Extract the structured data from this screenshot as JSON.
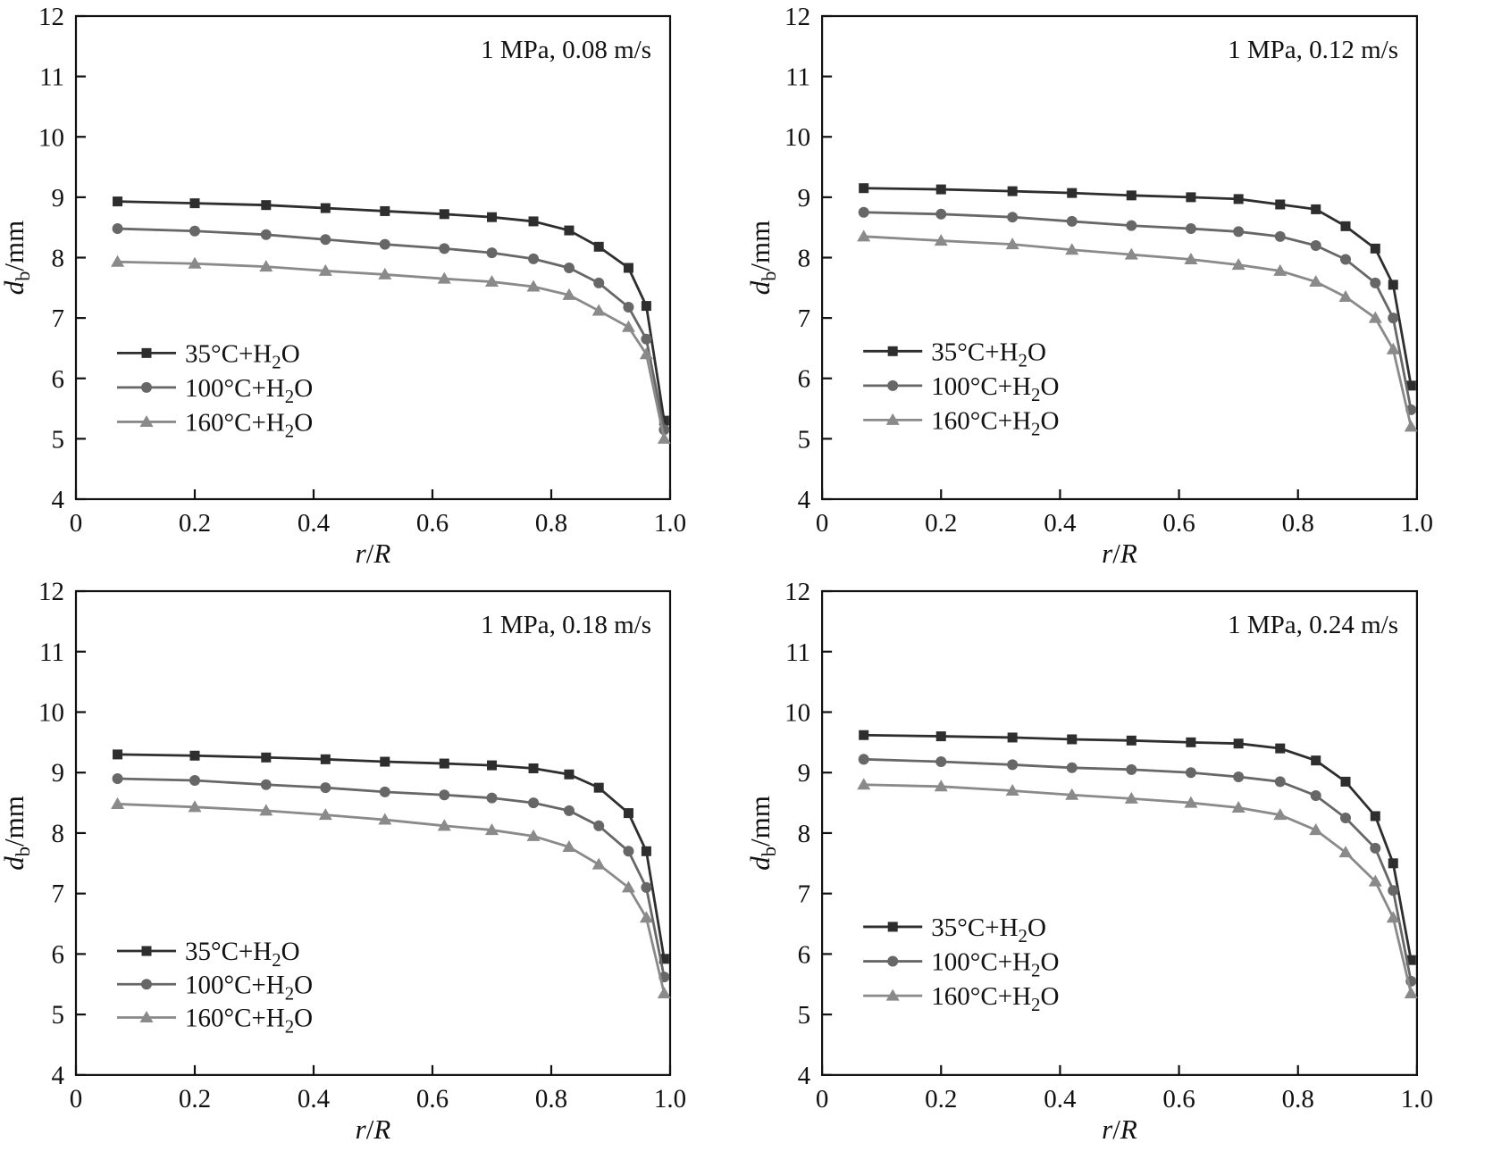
{
  "figure": {
    "background": "#ffffff",
    "xlabel": "r/R",
    "ylabel_var": "d",
    "ylabel_sub": "b",
    "ylabel_unit": "/mm",
    "xlim": [
      0,
      1.0
    ],
    "ylim": [
      4,
      12
    ],
    "xticks": [
      0,
      0.2,
      0.4,
      0.6,
      0.8,
      1.0
    ],
    "yticks": [
      4,
      5,
      6,
      7,
      8,
      9,
      10,
      11,
      12
    ],
    "grid": false,
    "legend_position": "lower-left-inside",
    "series_colors": [
      "#2e2e2e",
      "#676767",
      "#8a8a8a"
    ],
    "series_markers": [
      "square",
      "circle",
      "triangle"
    ],
    "axis_color": "#111111"
  },
  "chart_data": [
    {
      "type": "line",
      "annotation": "1 MPa, 0.08 m/s",
      "xlabel": "r/R",
      "ylabel": "db/mm",
      "xlim": [
        0,
        1.0
      ],
      "ylim": [
        4,
        12
      ],
      "x": [
        0.07,
        0.2,
        0.32,
        0.42,
        0.52,
        0.62,
        0.7,
        0.77,
        0.83,
        0.88,
        0.93,
        0.96,
        0.99
      ],
      "series": [
        {
          "name": "35°C+H₂O",
          "values": [
            8.93,
            8.9,
            8.87,
            8.82,
            8.77,
            8.72,
            8.67,
            8.6,
            8.45,
            8.18,
            7.83,
            7.2,
            5.3
          ]
        },
        {
          "name": "100°C+H₂O",
          "values": [
            8.48,
            8.44,
            8.38,
            8.3,
            8.22,
            8.15,
            8.08,
            7.98,
            7.83,
            7.58,
            7.18,
            6.65,
            5.15
          ]
        },
        {
          "name": "160°C+H₂O",
          "values": [
            7.93,
            7.9,
            7.85,
            7.78,
            7.72,
            7.65,
            7.6,
            7.52,
            7.38,
            7.12,
            6.85,
            6.4,
            5.0
          ]
        }
      ],
      "legend_y": [
        6.42,
        5.85,
        5.28
      ]
    },
    {
      "type": "line",
      "annotation": "1 MPa, 0.12 m/s",
      "xlabel": "r/R",
      "ylabel": "db/mm",
      "xlim": [
        0,
        1.0
      ],
      "ylim": [
        4,
        12
      ],
      "x": [
        0.07,
        0.2,
        0.32,
        0.42,
        0.52,
        0.62,
        0.7,
        0.77,
        0.83,
        0.88,
        0.93,
        0.96,
        0.99
      ],
      "series": [
        {
          "name": "35°C+H₂O",
          "values": [
            9.15,
            9.13,
            9.1,
            9.07,
            9.03,
            9.0,
            8.97,
            8.88,
            8.8,
            8.52,
            8.15,
            7.55,
            5.88
          ]
        },
        {
          "name": "100°C+H₂O",
          "values": [
            8.75,
            8.72,
            8.67,
            8.6,
            8.53,
            8.48,
            8.43,
            8.35,
            8.2,
            7.97,
            7.58,
            7.0,
            5.48
          ]
        },
        {
          "name": "160°C+H₂O",
          "values": [
            8.35,
            8.28,
            8.22,
            8.13,
            8.05,
            7.97,
            7.88,
            7.78,
            7.6,
            7.35,
            7.0,
            6.48,
            5.2
          ]
        }
      ],
      "legend_y": [
        6.45,
        5.88,
        5.31
      ]
    },
    {
      "type": "line",
      "annotation": "1 MPa, 0.18 m/s",
      "xlabel": "r/R",
      "ylabel": "db/mm",
      "xlim": [
        0,
        1.0
      ],
      "ylim": [
        4,
        12
      ],
      "x": [
        0.07,
        0.2,
        0.32,
        0.42,
        0.52,
        0.62,
        0.7,
        0.77,
        0.83,
        0.88,
        0.93,
        0.96,
        0.99
      ],
      "series": [
        {
          "name": "35°C+H₂O",
          "values": [
            9.3,
            9.28,
            9.25,
            9.22,
            9.18,
            9.15,
            9.12,
            9.07,
            8.97,
            8.75,
            8.33,
            7.7,
            5.92
          ]
        },
        {
          "name": "100°C+H₂O",
          "values": [
            8.9,
            8.87,
            8.8,
            8.75,
            8.68,
            8.63,
            8.58,
            8.5,
            8.37,
            8.12,
            7.7,
            7.1,
            5.62
          ]
        },
        {
          "name": "160°C+H₂O",
          "values": [
            8.48,
            8.43,
            8.37,
            8.3,
            8.22,
            8.12,
            8.05,
            7.95,
            7.77,
            7.48,
            7.1,
            6.6,
            5.35
          ]
        }
      ],
      "legend_y": [
        6.05,
        5.5,
        4.95
      ]
    },
    {
      "type": "line",
      "annotation": "1 MPa, 0.24 m/s",
      "xlabel": "r/R",
      "ylabel": "db/mm",
      "xlim": [
        0,
        1.0
      ],
      "ylim": [
        4,
        12
      ],
      "x": [
        0.07,
        0.2,
        0.32,
        0.42,
        0.52,
        0.62,
        0.7,
        0.77,
        0.83,
        0.88,
        0.93,
        0.96,
        0.99
      ],
      "series": [
        {
          "name": "35°C+H₂O",
          "values": [
            9.62,
            9.6,
            9.58,
            9.55,
            9.53,
            9.5,
            9.48,
            9.4,
            9.2,
            8.85,
            8.28,
            7.5,
            5.9
          ]
        },
        {
          "name": "100°C+H₂O",
          "values": [
            9.22,
            9.18,
            9.13,
            9.08,
            9.05,
            9.0,
            8.93,
            8.85,
            8.62,
            8.25,
            7.75,
            7.05,
            5.55
          ]
        },
        {
          "name": "160°C+H₂O",
          "values": [
            8.8,
            8.77,
            8.7,
            8.63,
            8.57,
            8.5,
            8.42,
            8.3,
            8.05,
            7.68,
            7.2,
            6.6,
            5.35
          ]
        }
      ],
      "legend_y": [
        6.45,
        5.88,
        5.31
      ]
    }
  ]
}
